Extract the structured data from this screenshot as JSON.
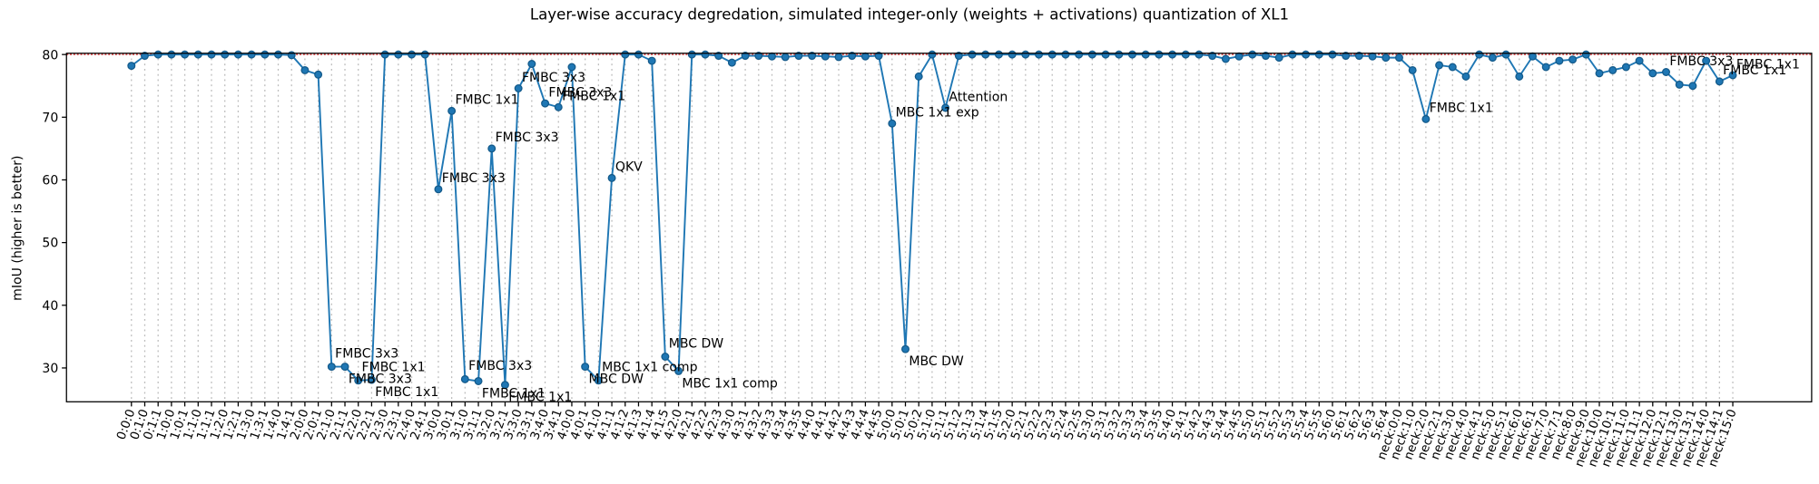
{
  "chart_data": {
    "type": "line",
    "title": "Layer-wise accuracy degredation, simulated integer-only (weights + activations) quantization of XL1",
    "y_label": "mIoU (higher is better)",
    "categories": [
      "0:0:0",
      "0:1:0",
      "0:1:1",
      "1:0:0",
      "1:0:1",
      "1:1:0",
      "1:1:1",
      "1:2:0",
      "1:2:1",
      "1:3:0",
      "1:3:1",
      "1:4:0",
      "1:4:1",
      "2:0:0",
      "2:0:1",
      "2:1:0",
      "2:1:1",
      "2:2:0",
      "2:2:1",
      "2:3:0",
      "2:3:1",
      "2:4:0",
      "2:4:1",
      "3:0:0",
      "3:0:1",
      "3:1:0",
      "3:1:1",
      "3:2:0",
      "3:2:1",
      "3:3:0",
      "3:3:1",
      "3:4:0",
      "3:4:1",
      "4:0:0",
      "4:0:1",
      "4:1:0",
      "4:1:1",
      "4:1:2",
      "4:1:3",
      "4:1:4",
      "4:1:5",
      "4:2:0",
      "4:2:1",
      "4:2:2",
      "4:2:3",
      "4:3:0",
      "4:3:1",
      "4:3:2",
      "4:3:3",
      "4:3:4",
      "4:3:5",
      "4:4:0",
      "4:4:1",
      "4:4:2",
      "4:4:3",
      "4:4:4",
      "4:4:5",
      "5:0:0",
      "5:0:1",
      "5:0:2",
      "5:1:0",
      "5:1:1",
      "5:1:2",
      "5:1:3",
      "5:1:4",
      "5:1:5",
      "5:2:0",
      "5:2:1",
      "5:2:2",
      "5:2:3",
      "5:2:4",
      "5:2:5",
      "5:3:0",
      "5:3:1",
      "5:3:2",
      "5:3:3",
      "5:3:4",
      "5:3:5",
      "5:4:0",
      "5:4:1",
      "5:4:2",
      "5:4:3",
      "5:4:4",
      "5:4:5",
      "5:5:0",
      "5:5:1",
      "5:5:2",
      "5:5:3",
      "5:5:4",
      "5:5:5",
      "5:6:0",
      "5:6:1",
      "5:6:2",
      "5:6:3",
      "5:6:4",
      "neck:0:0",
      "neck:1:0",
      "neck:2:0",
      "neck:2:1",
      "neck:3:0",
      "neck:4:0",
      "neck:4:1",
      "neck:5:0",
      "neck:5:1",
      "neck:6:0",
      "neck:6:1",
      "neck:7:0",
      "neck:7:1",
      "neck:8:0",
      "neck:9:0",
      "neck:10:0",
      "neck:10:1",
      "neck:11:0",
      "neck:11:1",
      "neck:12:0",
      "neck:12:1",
      "neck:13:0",
      "neck:13:1",
      "neck:14:0",
      "neck:14:1",
      "neck:15:0"
    ],
    "series": [
      {
        "name": "mIoU",
        "color": "#1f77b4",
        "values": [
          78.2,
          79.8,
          80,
          80,
          80,
          80,
          80,
          80,
          80,
          80,
          80,
          80,
          79.9,
          77.5,
          76.8,
          30.2,
          30.2,
          28,
          28.1,
          80,
          80,
          80,
          80,
          58.5,
          71,
          28.2,
          27.9,
          65,
          27.3,
          74.6,
          78.5,
          72.2,
          71.6,
          78,
          30.2,
          28,
          60.3,
          80,
          80,
          79,
          31.8,
          29.5,
          80,
          80,
          79.8,
          78.7,
          79.8,
          79.8,
          79.7,
          79.6,
          79.8,
          79.8,
          79.7,
          79.6,
          79.8,
          79.7,
          79.8,
          69,
          33,
          76.5,
          80,
          71.5,
          79.8,
          80,
          80,
          80,
          80,
          80,
          80,
          80,
          80,
          80,
          80,
          80,
          80,
          80,
          80,
          80,
          80,
          80,
          80,
          79.8,
          79.3,
          79.7,
          80,
          79.8,
          79.5,
          80,
          80,
          80,
          80,
          79.8,
          79.8,
          79.7,
          79.5,
          79.5,
          77.5,
          69.7,
          78.3,
          78,
          76.5,
          80,
          79.5,
          80,
          76.5,
          79.7,
          78,
          79,
          79.2,
          80,
          77,
          77.5,
          78,
          79,
          77,
          77.2,
          75.2,
          75,
          79,
          75.7,
          76.7
        ]
      }
    ],
    "reference_line": {
      "value": 80,
      "color": "#d62728"
    },
    "annotations": [
      {
        "text": "FMBC 3x3",
        "x": "2:1:0"
      },
      {
        "text": "FMBC 3x3",
        "x": "2:1:1"
      },
      {
        "text": "FMBC 1x1",
        "x": "2:2:0"
      },
      {
        "text": "FMBC 1x1",
        "x": "2:2:1"
      },
      {
        "text": "FMBC 3x3",
        "x": "3:0:0"
      },
      {
        "text": "FMBC 1x1",
        "x": "3:0:1"
      },
      {
        "text": "FMBC 3x3",
        "x": "3:1:0"
      },
      {
        "text": "FMBC 1x1",
        "x": "3:1:1"
      },
      {
        "text": "FMBC 3x3",
        "x": "3:2:0"
      },
      {
        "text": "FMBC 1x1",
        "x": "3:2:1"
      },
      {
        "text": "FMBC 3x3",
        "x": "3:3:0"
      },
      {
        "text": "FMBC 3x3",
        "x": "3:4:0"
      },
      {
        "text": "FMBC 1x1",
        "x": "3:4:1"
      },
      {
        "text": "MBC DW",
        "x": "4:0:1"
      },
      {
        "text": "MBC 1x1 comp",
        "x": "4:1:0"
      },
      {
        "text": "QKV",
        "x": "4:1:1"
      },
      {
        "text": "MBC DW",
        "x": "4:1:5"
      },
      {
        "text": "MBC 1x1 comp",
        "x": "4:2:0"
      },
      {
        "text": "MBC 1x1 exp",
        "x": "5:0:0"
      },
      {
        "text": "MBC DW",
        "x": "5:0:1"
      },
      {
        "text": "Attention",
        "x": "5:1:1"
      },
      {
        "text": "FMBC 1x1",
        "x": "neck:2:0"
      },
      {
        "text": "FMBC 3x3",
        "x": "neck:12:1"
      },
      {
        "text": "FMBC 1x1",
        "x": "neck:14:1"
      },
      {
        "text": "FMBC 1x1",
        "x": "neck:15:0"
      }
    ],
    "ylim": [
      24.6,
      80.2
    ],
    "yticks": [
      30,
      40,
      50,
      60,
      70,
      80
    ],
    "grid": "x"
  }
}
